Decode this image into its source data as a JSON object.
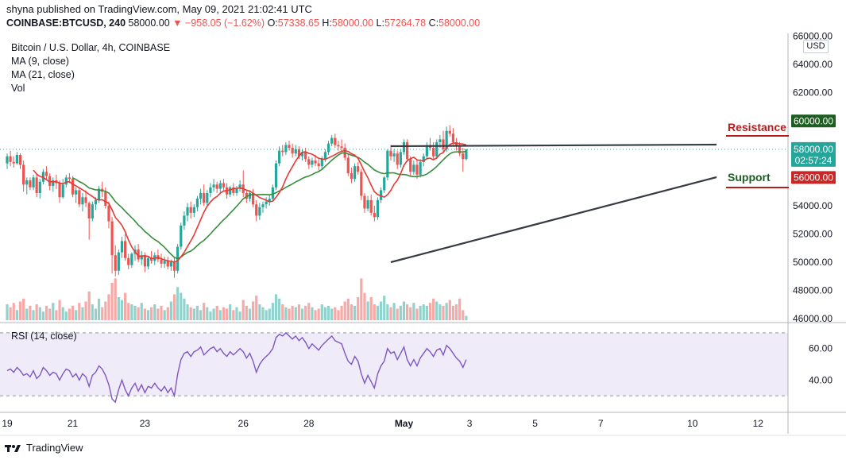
{
  "header": {
    "published": "shyna published on TradingView.com, May 09, 2021 21:02:41 UTC",
    "symbol": "COINBASE:BTCUSD, 240",
    "last": "58000.00",
    "arrow": "▼",
    "change": "−958.05 (−1.62%)",
    "o_label": "O:",
    "o_value": "57338.65",
    "h_label": "H:",
    "h_value": "58000.00",
    "l_label": "L:",
    "l_value": "57264.78",
    "c_label": "C:",
    "c_value": "58000.00"
  },
  "legend": {
    "title": "Bitcoin / U.S. Dollar, 4h, COINBASE",
    "ma9": "MA (9, close)",
    "ma21": "MA (21, close)",
    "vol": "Vol"
  },
  "currency_button": "USD",
  "rsi_label": "RSI (14, close)",
  "branding": "TradingView",
  "chart_data": [
    {
      "type": "candlestick",
      "title": "Bitcoin / U.S. Dollar, 4h, COINBASE",
      "y_ticks": [
        "66000.00",
        "64000.00",
        "62000.00",
        "60000.00",
        "58000.00",
        "56000.00",
        "54000.00",
        "52000.00",
        "50000.00",
        "48000.00",
        "46000.00"
      ],
      "ylim": [
        45900,
        66200
      ],
      "x_ticks": [
        "19",
        "21",
        "23",
        "26",
        "28",
        "May",
        "3",
        "5",
        "7",
        "10",
        "12"
      ],
      "x_tick_bars": [
        0,
        20,
        42,
        72,
        92,
        121,
        141,
        161,
        181,
        209,
        229
      ],
      "tags": {
        "resistance_value": "60000.00",
        "current_value": "58000.00",
        "countdown": "02:57:24",
        "support_value": "56000.00"
      },
      "annotations": {
        "resistance": "Resistance",
        "support": "Support"
      },
      "colors": {
        "up": "#26a69a",
        "down": "#ef5350",
        "ma9": "#e53935",
        "ma21": "#388e3c",
        "trendline": "#363a45"
      },
      "candles": [
        [
          57000,
          57700,
          56600,
          57500
        ],
        [
          57500,
          57900,
          56800,
          57100
        ],
        [
          57100,
          57500,
          56700,
          57000
        ],
        [
          57000,
          57800,
          56900,
          57600
        ],
        [
          57600,
          57700,
          56600,
          56900
        ],
        [
          56900,
          57200,
          55000,
          55500
        ],
        [
          55500,
          56000,
          54800,
          55800
        ],
        [
          55800,
          56000,
          55100,
          55300
        ],
        [
          55300,
          56200,
          55100,
          56000
        ],
        [
          56000,
          56300,
          54600,
          54900
        ],
        [
          54900,
          55900,
          54500,
          55700
        ],
        [
          55700,
          56600,
          55500,
          56400
        ],
        [
          56400,
          56800,
          55800,
          56100
        ],
        [
          56100,
          56300,
          55100,
          55400
        ],
        [
          55400,
          56000,
          55000,
          55800
        ],
        [
          55800,
          56200,
          55200,
          55600
        ],
        [
          55600,
          55800,
          54200,
          54600
        ],
        [
          54600,
          55900,
          54500,
          55500
        ],
        [
          55500,
          56200,
          55300,
          56000
        ],
        [
          56000,
          56300,
          55600,
          55900
        ],
        [
          55900,
          56100,
          54600,
          54800
        ],
        [
          54800,
          55300,
          54200,
          55100
        ],
        [
          55100,
          55300,
          53900,
          54100
        ],
        [
          54100,
          54900,
          53600,
          54600
        ],
        [
          54600,
          55100,
          53900,
          54200
        ],
        [
          54200,
          54300,
          51600,
          53100
        ],
        [
          53100,
          54300,
          52900,
          54100
        ],
        [
          54100,
          54600,
          53700,
          54400
        ],
        [
          54400,
          55400,
          54200,
          55200
        ],
        [
          55200,
          55700,
          54600,
          55000
        ],
        [
          55000,
          55300,
          53800,
          54000
        ],
        [
          54000,
          54300,
          52400,
          52900
        ],
        [
          52900,
          53200,
          49200,
          50500
        ],
        [
          50500,
          51200,
          49000,
          49400
        ],
        [
          49400,
          50900,
          49100,
          50700
        ],
        [
          50700,
          51800,
          50300,
          51500
        ],
        [
          51500,
          52000,
          50100,
          50300
        ],
        [
          50300,
          50600,
          49500,
          49800
        ],
        [
          49800,
          50700,
          49600,
          50600
        ],
        [
          50600,
          51200,
          50100,
          50900
        ],
        [
          50900,
          51300,
          50000,
          50200
        ],
        [
          50200,
          50800,
          49800,
          50500
        ],
        [
          50500,
          50700,
          49300,
          49700
        ],
        [
          49700,
          50400,
          49500,
          50300
        ],
        [
          50300,
          50800,
          49900,
          50100
        ],
        [
          50100,
          50700,
          49800,
          50500
        ],
        [
          50500,
          50900,
          50000,
          50200
        ],
        [
          50200,
          50600,
          49600,
          49900
        ],
        [
          49900,
          50400,
          49600,
          50100
        ],
        [
          50100,
          50400,
          49500,
          49700
        ],
        [
          49700,
          50200,
          49400,
          50000
        ],
        [
          50000,
          50300,
          48900,
          49400
        ],
        [
          49400,
          51300,
          49200,
          51100
        ],
        [
          51100,
          52800,
          50900,
          52600
        ],
        [
          52600,
          53600,
          52300,
          53300
        ],
        [
          53300,
          54200,
          52900,
          53900
        ],
        [
          53900,
          54300,
          53100,
          53500
        ],
        [
          53500,
          54100,
          53200,
          53900
        ],
        [
          53900,
          54700,
          53600,
          54500
        ],
        [
          54500,
          55200,
          54100,
          54900
        ],
        [
          54900,
          55500,
          54000,
          54200
        ],
        [
          54200,
          55100,
          54000,
          54900
        ],
        [
          54900,
          55600,
          54600,
          55300
        ],
        [
          55300,
          55900,
          55000,
          55500
        ],
        [
          55500,
          55700,
          54900,
          55200
        ],
        [
          55200,
          55800,
          54900,
          55600
        ],
        [
          55600,
          55900,
          55100,
          55300
        ],
        [
          55300,
          55600,
          54500,
          54800
        ],
        [
          54800,
          55400,
          54600,
          55300
        ],
        [
          55300,
          55600,
          54700,
          54900
        ],
        [
          54900,
          55400,
          54700,
          55200
        ],
        [
          55200,
          55800,
          55000,
          55500
        ],
        [
          55500,
          56500,
          54600,
          54900
        ],
        [
          54900,
          55100,
          54200,
          54500
        ],
        [
          54500,
          55100,
          54300,
          54900
        ],
        [
          54900,
          55200,
          53900,
          54100
        ],
        [
          54100,
          54400,
          52900,
          53300
        ],
        [
          53300,
          54200,
          53000,
          53900
        ],
        [
          53900,
          54300,
          53500,
          54100
        ],
        [
          54100,
          54600,
          53800,
          54300
        ],
        [
          54300,
          54800,
          54000,
          54500
        ],
        [
          54500,
          55500,
          54400,
          55300
        ],
        [
          55300,
          57200,
          55100,
          57000
        ],
        [
          57000,
          58200,
          56800,
          57900
        ],
        [
          57900,
          58300,
          57500,
          57800
        ],
        [
          57800,
          58500,
          57600,
          58300
        ],
        [
          58300,
          58600,
          57900,
          58100
        ],
        [
          58100,
          58400,
          57400,
          57700
        ],
        [
          57700,
          58300,
          57500,
          58000
        ],
        [
          58000,
          58200,
          57300,
          57500
        ],
        [
          57500,
          58000,
          57200,
          57800
        ],
        [
          57800,
          58100,
          57100,
          57300
        ],
        [
          57300,
          57500,
          56600,
          56900
        ],
        [
          56900,
          57400,
          56700,
          57200
        ],
        [
          57200,
          57600,
          56800,
          57000
        ],
        [
          57000,
          57300,
          56500,
          56800
        ],
        [
          56800,
          57500,
          56600,
          57300
        ],
        [
          57300,
          58000,
          57100,
          57800
        ],
        [
          57800,
          58600,
          57600,
          58400
        ],
        [
          58400,
          59000,
          58200,
          58800
        ],
        [
          58800,
          59100,
          58100,
          58300
        ],
        [
          58300,
          58600,
          57900,
          58200
        ],
        [
          58200,
          58700,
          57800,
          58100
        ],
        [
          58100,
          58400,
          57200,
          57400
        ],
        [
          57400,
          57700,
          56100,
          56300
        ],
        [
          56300,
          56700,
          55600,
          55900
        ],
        [
          55900,
          57000,
          55700,
          56800
        ],
        [
          56800,
          57100,
          56200,
          56400
        ],
        [
          56400,
          56600,
          54400,
          54700
        ],
        [
          54700,
          54900,
          53500,
          53800
        ],
        [
          53800,
          54700,
          53600,
          54400
        ],
        [
          54400,
          54800,
          53300,
          53500
        ],
        [
          53500,
          54000,
          52900,
          53200
        ],
        [
          53200,
          54600,
          53000,
          54400
        ],
        [
          54400,
          55300,
          54200,
          55100
        ],
        [
          55100,
          56100,
          54900,
          56000
        ],
        [
          56000,
          58000,
          55800,
          57900
        ],
        [
          57900,
          58300,
          57200,
          57500
        ],
        [
          57500,
          58000,
          57100,
          57700
        ],
        [
          57700,
          57900,
          56600,
          56900
        ],
        [
          56900,
          58000,
          56700,
          57800
        ],
        [
          57800,
          58700,
          57600,
          58500
        ],
        [
          58500,
          58700,
          57100,
          57300
        ],
        [
          57300,
          57500,
          56100,
          56400
        ],
        [
          56400,
          57200,
          56200,
          56900
        ],
        [
          56900,
          57200,
          55900,
          56200
        ],
        [
          56200,
          57300,
          56000,
          57100
        ],
        [
          57100,
          57700,
          56800,
          57500
        ],
        [
          57500,
          58500,
          57300,
          58300
        ],
        [
          58300,
          58800,
          57900,
          58100
        ],
        [
          58100,
          58500,
          57300,
          57500
        ],
        [
          57500,
          58700,
          57300,
          58500
        ],
        [
          58500,
          59000,
          58100,
          58700
        ],
        [
          58700,
          59300,
          57800,
          58000
        ],
        [
          58000,
          59600,
          57800,
          59300
        ],
        [
          59300,
          59700,
          58900,
          59100
        ],
        [
          59100,
          59500,
          58300,
          58500
        ],
        [
          58500,
          58800,
          57900,
          58200
        ],
        [
          58200,
          58500,
          57500,
          57700
        ],
        [
          57700,
          58100,
          56400,
          57300
        ],
        [
          57300,
          58000,
          57200,
          58000
        ]
      ],
      "volume_ylim": [
        0,
        3.2
      ],
      "volumes": [
        1.1,
        0.9,
        1.2,
        0.7,
        1.3,
        1.5,
        0.8,
        1.0,
        0.7,
        1.1,
        0.9,
        0.6,
        1.0,
        0.8,
        1.2,
        0.7,
        1.4,
        0.9,
        0.6,
        0.8,
        1.0,
        0.7,
        1.2,
        0.9,
        1.3,
        2.0,
        1.1,
        0.8,
        1.5,
        0.9,
        1.3,
        1.8,
        2.6,
        2.9,
        1.6,
        1.4,
        1.9,
        1.2,
        1.1,
        1.0,
        0.9,
        1.2,
        0.8,
        0.7,
        0.9,
        1.1,
        0.8,
        1.0,
        0.7,
        0.9,
        1.3,
        1.8,
        2.3,
        1.9,
        1.5,
        1.1,
        0.9,
        0.8,
        1.0,
        0.7,
        1.2,
        0.9,
        0.6,
        0.8,
        1.0,
        0.7,
        0.9,
        0.8,
        1.1,
        0.7,
        0.9,
        0.6,
        1.4,
        1.0,
        0.8,
        1.3,
        1.7,
        1.1,
        0.9,
        0.7,
        0.8,
        1.2,
        1.8,
        1.5,
        1.1,
        0.9,
        0.8,
        1.0,
        0.9,
        1.1,
        0.8,
        1.0,
        1.2,
        0.9,
        0.7,
        0.8,
        1.1,
        0.9,
        1.0,
        0.8,
        0.9,
        0.7,
        1.0,
        1.3,
        1.5,
        1.1,
        1.0,
        1.6,
        2.9,
        1.9,
        1.3,
        1.6,
        1.1,
        1.0,
        1.3,
        1.7,
        1.1,
        0.9,
        1.2,
        0.8,
        1.0,
        1.3,
        1.1,
        0.9,
        1.2,
        0.8,
        1.0,
        1.1,
        1.0,
        1.2,
        1.5,
        1.3,
        1.1,
        1.0,
        1.2,
        1.4,
        1.0,
        1.1,
        1.5,
        0.7,
        0.3
      ],
      "rsi": {
        "name": "RSI (14, close)",
        "ylim": [
          20,
          75
        ],
        "y_ticks": [
          "60.00",
          "40.00"
        ],
        "band": [
          30,
          70
        ],
        "values": [
          46,
          47,
          45,
          48,
          46,
          43,
          44,
          42,
          46,
          41,
          43,
          48,
          46,
          43,
          45,
          44,
          40,
          44,
          47,
          46,
          42,
          44,
          40,
          44,
          42,
          36,
          43,
          45,
          49,
          47,
          43,
          37,
          28,
          26,
          34,
          40,
          34,
          30,
          35,
          38,
          33,
          37,
          32,
          36,
          35,
          38,
          35,
          33,
          36,
          32,
          35,
          30,
          44,
          53,
          57,
          58,
          55,
          58,
          59,
          61,
          56,
          58,
          60,
          61,
          58,
          60,
          57,
          55,
          58,
          56,
          58,
          60,
          58,
          54,
          57,
          52,
          45,
          50,
          53,
          55,
          57,
          60,
          67,
          69,
          68,
          70,
          68,
          66,
          68,
          65,
          67,
          64,
          60,
          63,
          61,
          59,
          62,
          64,
          66,
          68,
          65,
          64,
          63,
          57,
          52,
          50,
          55,
          52,
          44,
          38,
          43,
          39,
          35,
          44,
          49,
          52,
          60,
          57,
          58,
          53,
          57,
          61,
          53,
          49,
          53,
          49,
          54,
          57,
          60,
          58,
          55,
          59,
          60,
          56,
          62,
          60,
          57,
          54,
          52,
          48,
          53
        ]
      }
    }
  ]
}
